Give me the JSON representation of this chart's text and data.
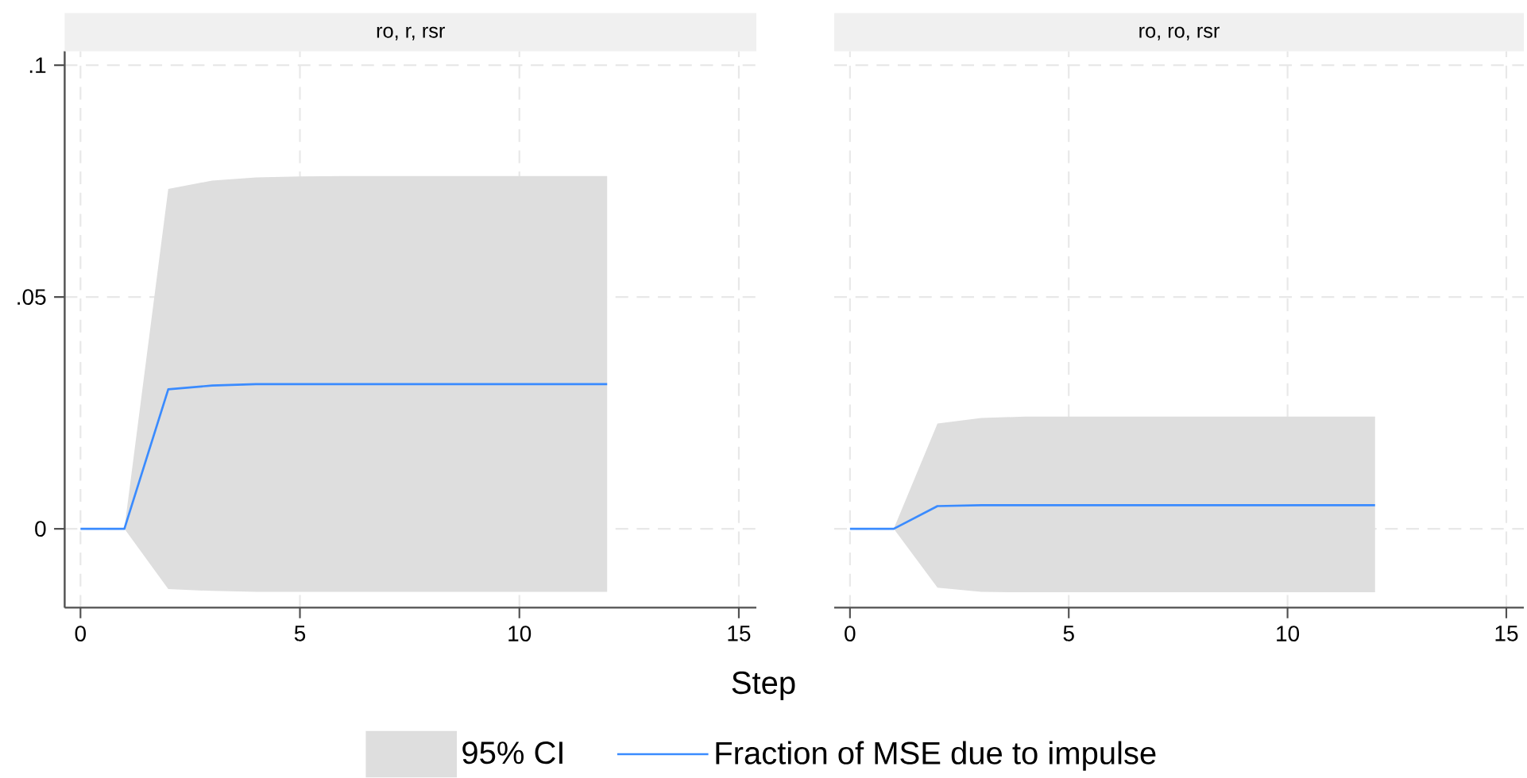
{
  "chart_data": [
    {
      "type": "line",
      "title": "ro, r, rsr",
      "xlabel": "Step",
      "annotations": [
        "95% CI"
      ],
      "x": [
        0,
        1,
        2,
        3,
        4,
        5,
        6,
        7,
        8,
        9,
        10,
        11,
        12
      ],
      "xlim": [
        -0.36,
        15.4
      ],
      "ylim": [
        -0.017,
        0.103
      ],
      "xticks": [
        0,
        5,
        10,
        15
      ],
      "yticks": [
        {
          "value": 0,
          "label": "0"
        },
        {
          "value": 0.05,
          "label": ".05"
        },
        {
          "value": 0.1,
          "label": ".1"
        }
      ],
      "grid": true,
      "legend": "bottom",
      "series": [
        {
          "name": "Fraction of MSE due to impulse",
          "type": "line",
          "color": "#3a8bff",
          "values": [
            0,
            0,
            0.0301,
            0.0309,
            0.0312,
            0.0312,
            0.0312,
            0.0312,
            0.0312,
            0.0312,
            0.0312,
            0.0312,
            0.0312
          ],
          "lower": [
            0,
            0,
            -0.013,
            -0.0134,
            -0.0136,
            -0.0136,
            -0.0136,
            -0.0136,
            -0.0136,
            -0.0136,
            -0.0136,
            -0.0136,
            -0.0136
          ],
          "upper": [
            0,
            0,
            0.0733,
            0.0751,
            0.0758,
            0.076,
            0.0761,
            0.0761,
            0.0761,
            0.0761,
            0.0761,
            0.0761,
            0.0761
          ]
        }
      ]
    },
    {
      "type": "line",
      "title": "ro, ro, rsr",
      "x": [
        0,
        1,
        2,
        3,
        4,
        5,
        6,
        7,
        8,
        9,
        10,
        11,
        12
      ],
      "xlim": [
        -0.36,
        15.4
      ],
      "ylim": [
        -0.017,
        0.103
      ],
      "xticks": [
        0,
        5,
        10,
        15
      ],
      "yticks": [
        {
          "value": 0,
          "label": null
        },
        {
          "value": 0.05,
          "label": null
        },
        {
          "value": 0.1,
          "label": null
        }
      ],
      "grid": true,
      "tick_labels": "x",
      "series": [
        {
          "type": "line",
          "color": "#3a8bff",
          "values": [
            0,
            0,
            0.0049,
            0.0051,
            0.0051,
            0.0051,
            0.0051,
            0.0051,
            0.0051,
            0.0051,
            0.0051,
            0.0051,
            0.0051
          ],
          "lower": [
            0,
            0,
            -0.0127,
            -0.0136,
            -0.0137,
            -0.0137,
            -0.0137,
            -0.0137,
            -0.0137,
            -0.0137,
            -0.0137,
            -0.0137,
            -0.0137
          ],
          "upper": [
            0,
            0,
            0.0227,
            0.0239,
            0.0242,
            0.0242,
            0.0242,
            0.0242,
            0.0242,
            0.0242,
            0.0242,
            0.0242,
            0.0242
          ]
        }
      ]
    }
  ]
}
